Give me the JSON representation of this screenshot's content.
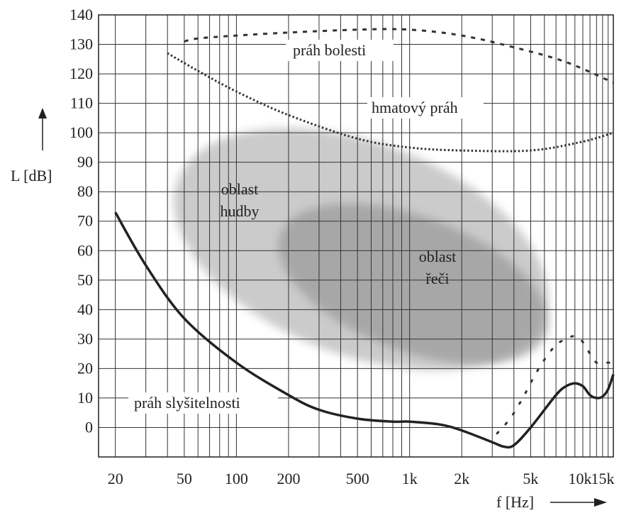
{
  "chart_data": {
    "type": "line",
    "x_scale": "log",
    "xlim": [
      16,
      15000
    ],
    "ylim": [
      -10,
      140
    ],
    "grid": true,
    "xlabel": "f [Hz]",
    "ylabel": "L [dB]",
    "y_ticks": [
      "140",
      "130",
      "120",
      "110",
      "100",
      "90",
      "80",
      "70",
      "60",
      "50",
      "40",
      "30",
      "20",
      "10",
      "0"
    ],
    "x_ticks": [
      {
        "label": "20",
        "value": 20
      },
      {
        "label": "50",
        "value": 50
      },
      {
        "label": "100",
        "value": 100
      },
      {
        "label": "200",
        "value": 200
      },
      {
        "label": "500",
        "value": 500
      },
      {
        "label": "1k",
        "value": 1000
      },
      {
        "label": "2k",
        "value": 2000
      },
      {
        "label": "5k",
        "value": 5000
      },
      {
        "label": "10k",
        "value": 10000
      },
      {
        "label": "15k",
        "value": 15000
      }
    ],
    "series": [
      {
        "name": "práh bolesti",
        "style": "dashed",
        "points": [
          [
            50,
            131
          ],
          [
            60,
            132
          ],
          [
            100,
            133
          ],
          [
            200,
            134
          ],
          [
            500,
            135
          ],
          [
            1000,
            135
          ],
          [
            2000,
            133
          ],
          [
            4000,
            129
          ],
          [
            8000,
            124
          ],
          [
            15000,
            117
          ]
        ]
      },
      {
        "name": "hmatový práh",
        "style": "dotted",
        "points": [
          [
            40,
            127
          ],
          [
            60,
            121
          ],
          [
            100,
            114
          ],
          [
            200,
            106
          ],
          [
            500,
            98
          ],
          [
            1000,
            95
          ],
          [
            2000,
            94
          ],
          [
            5000,
            94
          ],
          [
            10000,
            97
          ],
          [
            15000,
            100
          ]
        ]
      },
      {
        "name": "práh slyšitelnosti",
        "style": "solid",
        "points": [
          [
            20,
            73
          ],
          [
            30,
            55
          ],
          [
            50,
            37
          ],
          [
            100,
            22
          ],
          [
            200,
            11
          ],
          [
            300,
            6
          ],
          [
            500,
            3
          ],
          [
            800,
            2
          ],
          [
            1000,
            2
          ],
          [
            1500,
            1
          ],
          [
            2000,
            -1
          ],
          [
            3000,
            -5
          ],
          [
            3500,
            -6.5
          ],
          [
            4000,
            -6
          ],
          [
            5000,
            0
          ],
          [
            7000,
            11
          ],
          [
            8000,
            14
          ],
          [
            9000,
            15
          ],
          [
            10000,
            14
          ],
          [
            11000,
            11
          ],
          [
            12000,
            10
          ],
          [
            13000,
            10.5
          ],
          [
            14000,
            13
          ],
          [
            15000,
            18
          ]
        ]
      },
      {
        "name": "",
        "style": "sparse-dotted",
        "points": [
          [
            3200,
            -2
          ],
          [
            3800,
            3
          ],
          [
            4500,
            10
          ],
          [
            5200,
            17
          ],
          [
            6000,
            23
          ],
          [
            7000,
            28
          ],
          [
            8000,
            30
          ],
          [
            9000,
            31
          ],
          [
            10000,
            29
          ],
          [
            11000,
            25
          ],
          [
            12000,
            22
          ],
          [
            13500,
            22
          ],
          [
            15000,
            22
          ]
        ]
      }
    ],
    "regions": [
      {
        "name": "oblast hudby",
        "label_lines": [
          "oblast",
          "hudby"
        ],
        "color": "#bdbdbd"
      },
      {
        "name": "oblast řeči",
        "label_lines": [
          "oblast",
          "řeči"
        ],
        "color": "#9e9e9e"
      }
    ]
  }
}
